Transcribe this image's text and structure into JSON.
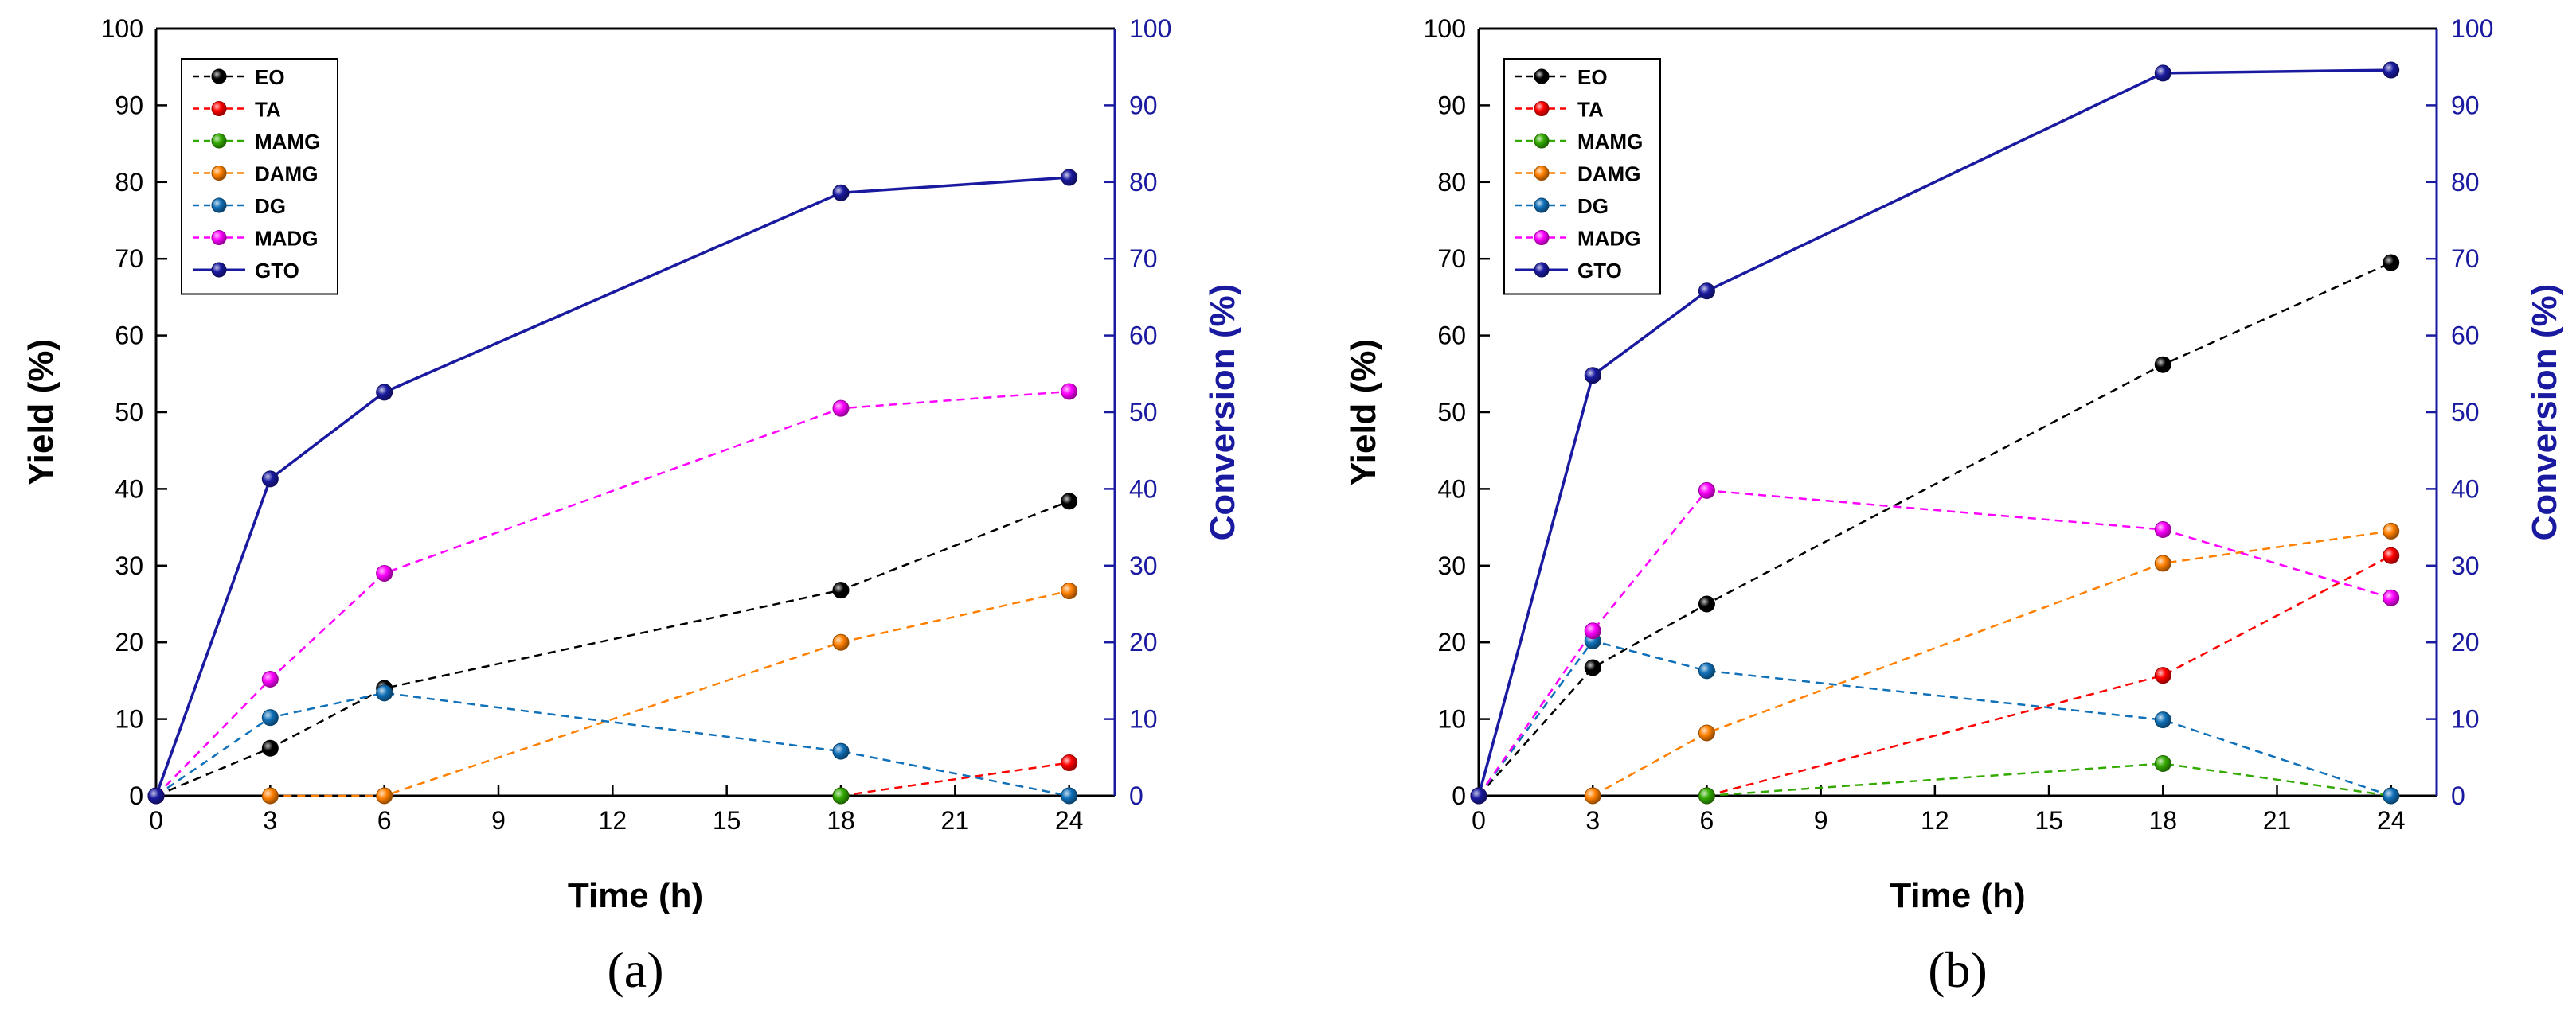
{
  "chart_data": [
    {
      "type": "line",
      "panel_label": "(a)",
      "xlabel": "Time (h)",
      "ylabel": "Yield (%)",
      "y2label": "Conversion (%)",
      "xlim": [
        0,
        25.2
      ],
      "ylim": [
        0,
        100
      ],
      "y2lim": [
        0,
        100
      ],
      "xticks": [
        0,
        3,
        6,
        9,
        12,
        15,
        18,
        21,
        24
      ],
      "yticks": [
        0,
        10,
        20,
        30,
        40,
        50,
        60,
        70,
        80,
        90,
        100
      ],
      "legend_position": "top-left",
      "series": [
        {
          "name": "EO",
          "color": "#000000",
          "style": "dashed",
          "axis": "left",
          "x": [
            0,
            3,
            6,
            18,
            24
          ],
          "values": [
            0,
            6.2,
            14.0,
            26.8,
            38.4
          ]
        },
        {
          "name": "TA",
          "color": "#ff0000",
          "style": "dashed",
          "axis": "left",
          "x": [
            18,
            24
          ],
          "values": [
            0,
            4.3
          ]
        },
        {
          "name": "MAMG",
          "color": "#33aa00",
          "style": "dashed",
          "axis": "left",
          "x": [
            18
          ],
          "values": [
            0
          ]
        },
        {
          "name": "DAMG",
          "color": "#ff8000",
          "style": "dashed",
          "axis": "left",
          "x": [
            3,
            6,
            18,
            24
          ],
          "values": [
            0,
            0,
            20.0,
            26.7
          ]
        },
        {
          "name": "DG",
          "color": "#1070b8",
          "style": "dashed",
          "axis": "left",
          "x": [
            0,
            3,
            6,
            18,
            24
          ],
          "values": [
            0,
            10.2,
            13.4,
            5.8,
            0
          ]
        },
        {
          "name": "MADG",
          "color": "#ff00ff",
          "style": "dashed",
          "axis": "left",
          "x": [
            0,
            3,
            6,
            18,
            24
          ],
          "values": [
            0,
            15.2,
            29.0,
            50.5,
            52.7
          ]
        },
        {
          "name": "GTO",
          "color": "#1a1aa0",
          "style": "solid",
          "axis": "right",
          "x": [
            0,
            3,
            6,
            18,
            24
          ],
          "values": [
            0,
            41.3,
            52.6,
            78.6,
            80.6
          ]
        }
      ]
    },
    {
      "type": "line",
      "panel_label": "(b)",
      "xlabel": "Time (h)",
      "ylabel": "Yield (%)",
      "y2label": "Conversion (%)",
      "xlim": [
        0,
        25.2
      ],
      "ylim": [
        0,
        100
      ],
      "y2lim": [
        0,
        100
      ],
      "xticks": [
        0,
        3,
        6,
        9,
        12,
        15,
        18,
        21,
        24
      ],
      "yticks": [
        0,
        10,
        20,
        30,
        40,
        50,
        60,
        70,
        80,
        90,
        100
      ],
      "legend_position": "top-left",
      "series": [
        {
          "name": "EO",
          "color": "#000000",
          "style": "dashed",
          "axis": "left",
          "x": [
            0,
            3,
            6,
            18,
            24
          ],
          "values": [
            0,
            16.7,
            25.0,
            56.2,
            69.5
          ]
        },
        {
          "name": "TA",
          "color": "#ff0000",
          "style": "dashed",
          "axis": "left",
          "x": [
            6,
            18,
            24
          ],
          "values": [
            0,
            15.7,
            31.3
          ]
        },
        {
          "name": "MAMG",
          "color": "#33aa00",
          "style": "dashed",
          "axis": "left",
          "x": [
            6,
            18,
            24
          ],
          "values": [
            0,
            4.2,
            0
          ]
        },
        {
          "name": "DAMG",
          "color": "#ff8000",
          "style": "dashed",
          "axis": "left",
          "x": [
            3,
            6,
            18,
            24
          ],
          "values": [
            0,
            8.2,
            30.3,
            34.5
          ]
        },
        {
          "name": "DG",
          "color": "#1070b8",
          "style": "dashed",
          "axis": "left",
          "x": [
            0,
            3,
            6,
            18,
            24
          ],
          "values": [
            0,
            20.2,
            16.3,
            9.9,
            0
          ]
        },
        {
          "name": "MADG",
          "color": "#ff00ff",
          "style": "dashed",
          "axis": "left",
          "x": [
            0,
            3,
            6,
            18,
            24
          ],
          "values": [
            0,
            21.5,
            39.8,
            34.7,
            25.8
          ]
        },
        {
          "name": "GTO",
          "color": "#1a1aa0",
          "style": "solid",
          "axis": "right",
          "x": [
            0,
            3,
            6,
            18,
            24
          ],
          "values": [
            0,
            54.8,
            65.8,
            94.2,
            94.6
          ]
        }
      ]
    }
  ]
}
